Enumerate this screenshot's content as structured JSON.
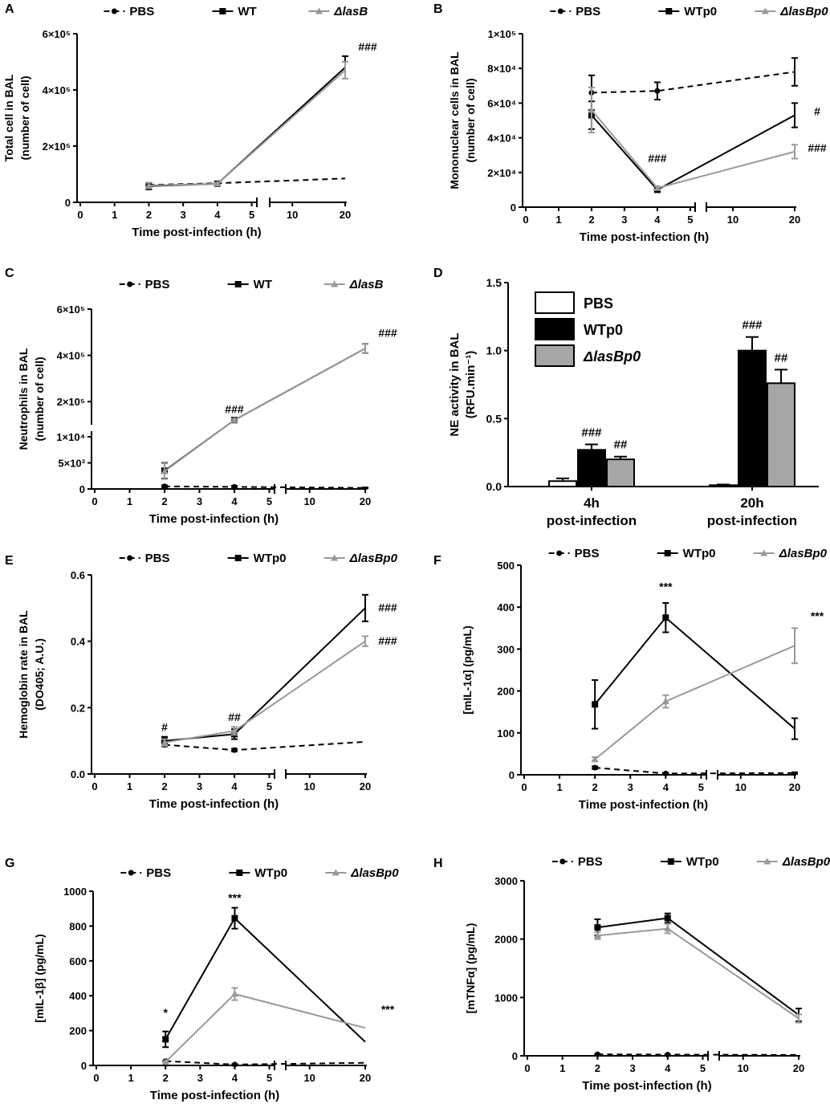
{
  "figure": "Multi-panel figure: cellular and inflammatory responses in BAL after infection",
  "series_styles": {
    "PBS": {
      "color": "#000000",
      "dash": "7,5",
      "marker": "circle"
    },
    "WT": {
      "color": "#000000",
      "dash": "",
      "marker": "square"
    },
    "dlasB": {
      "color": "#999999",
      "dash": "",
      "marker": "triangle"
    }
  },
  "chart_data": [
    {
      "panel": "A",
      "type": "line",
      "title": "",
      "ylabel_lines": [
        "Total cell in BAL",
        "(number of cell)"
      ],
      "xlabel": "Time post-infection (h)",
      "xticks": [
        "0",
        "1",
        "2",
        "3",
        "4",
        "5",
        "10",
        "20"
      ],
      "yticks": [
        0,
        200000,
        400000,
        600000
      ],
      "ytick_labels": [
        "0",
        "2×10⁵",
        "4×10⁵",
        "6×10⁵"
      ],
      "ylim": [
        0,
        600000
      ],
      "legend": [
        "PBS",
        "WT",
        "ΔlasB"
      ],
      "series": [
        {
          "name": "PBS",
          "x": [
            2,
            4,
            20
          ],
          "y": [
            62000,
            68000,
            85000
          ],
          "err": [
            8000,
            4000,
            0
          ]
        },
        {
          "name": "WT",
          "x": [
            2,
            4,
            20
          ],
          "y": [
            58000,
            66000,
            480000
          ],
          "err": [
            12000,
            4000,
            40000
          ]
        },
        {
          "name": "ΔlasB",
          "x": [
            2,
            4,
            20
          ],
          "y": [
            60000,
            66000,
            470000
          ],
          "err": [
            10000,
            4000,
            30000
          ]
        }
      ],
      "annotations": [
        {
          "text": "###",
          "x": 20,
          "y": 540000
        }
      ]
    },
    {
      "panel": "B",
      "type": "line",
      "ylabel_lines": [
        "Mononuclear cells in BAL",
        "(number of cell)"
      ],
      "xlabel": "Time post-infection (h)",
      "xticks": [
        "0",
        "1",
        "2",
        "3",
        "4",
        "5",
        "10",
        "20"
      ],
      "yticks": [
        0,
        20000,
        40000,
        60000,
        80000,
        100000
      ],
      "ytick_labels": [
        "0",
        "2×10⁴",
        "4×10⁴",
        "6×10⁴",
        "8×10⁴",
        "1×10⁵"
      ],
      "ylim": [
        0,
        100000
      ],
      "legend": [
        "PBS",
        "WTp0",
        "ΔlasBp0"
      ],
      "series": [
        {
          "name": "PBS",
          "x": [
            2,
            4,
            20
          ],
          "y": [
            66000,
            67000,
            78000
          ],
          "err": [
            10000,
            5000,
            8000
          ]
        },
        {
          "name": "WTp0",
          "x": [
            2,
            4,
            20
          ],
          "y": [
            53000,
            10000,
            53000
          ],
          "err": [
            8000,
            1000,
            7000
          ]
        },
        {
          "name": "ΔlasBp0",
          "x": [
            2,
            4,
            20
          ],
          "y": [
            56000,
            11000,
            32000
          ],
          "err": [
            13000,
            1000,
            4000
          ]
        }
      ],
      "annotations": [
        {
          "text": "###",
          "x": 4,
          "y": 26000
        },
        {
          "text": "#",
          "x": 20,
          "y": 53000
        },
        {
          "text": "###",
          "x": 20,
          "y": 32000
        }
      ]
    },
    {
      "panel": "C",
      "type": "line",
      "ylabel_lines": [
        "Neutrophils in BAL",
        "(number of cell)"
      ],
      "xlabel": "Time post-infection (h)",
      "xticks": [
        "0",
        "1",
        "2",
        "3",
        "4",
        "5",
        "10",
        "20"
      ],
      "ytick_labels": [
        "0",
        "5×10³",
        "1×10⁴",
        "2×10⁵",
        "4×10⁵",
        "6×10⁵"
      ],
      "ylim": [
        0,
        600000
      ],
      "legend": [
        "PBS",
        "WT",
        "ΔlasB"
      ],
      "series": [
        {
          "name": "PBS",
          "x": [
            2,
            4,
            20
          ],
          "y": [
            500,
            400,
            200
          ],
          "err": [
            200,
            200,
            100
          ]
        },
        {
          "name": "WT",
          "x": [
            2,
            4,
            20
          ],
          "y": [
            3500,
            120000,
            430000
          ],
          "err": [
            1500,
            5000,
            20000
          ]
        },
        {
          "name": "ΔlasB",
          "x": [
            2,
            4,
            20
          ],
          "y": [
            3400,
            120000,
            430000
          ],
          "err": [
            1500,
            5000,
            20000
          ]
        }
      ],
      "annotations": [
        {
          "text": "###",
          "x": 4,
          "y": 150000
        },
        {
          "text": "###",
          "x": 20,
          "y": 480000
        }
      ]
    },
    {
      "panel": "D",
      "type": "bar",
      "ylabel_lines": [
        "NE activity in BAL",
        "(RFU.min⁻¹)"
      ],
      "categories": [
        "4h",
        "20h"
      ],
      "category_sublabels": [
        "post-infection",
        "post-infection"
      ],
      "yticks": [
        0.0,
        0.5,
        1.0,
        1.5
      ],
      "ytick_labels": [
        "0.0",
        "0.5",
        "1.0",
        "1.5"
      ],
      "ylim": [
        0,
        1.5
      ],
      "legend": [
        "PBS",
        "WTp0",
        "ΔlasBp0"
      ],
      "series": [
        {
          "name": "PBS",
          "values": [
            0.04,
            0.01
          ],
          "err": [
            0.02,
            0.005
          ],
          "color": "#ffffff"
        },
        {
          "name": "WTp0",
          "values": [
            0.27,
            1.0
          ],
          "err": [
            0.04,
            0.1
          ],
          "color": "#000000"
        },
        {
          "name": "ΔlasBp0",
          "values": [
            0.2,
            0.76
          ],
          "err": [
            0.02,
            0.1
          ],
          "color": "#a6a6a6"
        }
      ],
      "annotations": [
        {
          "text": "###",
          "cat": 0,
          "series": 1
        },
        {
          "text": "##",
          "cat": 0,
          "series": 2
        },
        {
          "text": "###",
          "cat": 1,
          "series": 1
        },
        {
          "text": "##",
          "cat": 1,
          "series": 2
        }
      ]
    },
    {
      "panel": "E",
      "type": "line",
      "ylabel_lines": [
        "Hemoglobin rate in BAL",
        "(DO405; A.U.)"
      ],
      "xlabel": "Time post-infection (h)",
      "xticks": [
        "0",
        "1",
        "2",
        "3",
        "4",
        "5",
        "10",
        "20"
      ],
      "yticks": [
        0.0,
        0.2,
        0.4,
        0.6
      ],
      "ytick_labels": [
        "0.0",
        "0.2",
        "0.4",
        "0.6"
      ],
      "ylim": [
        0,
        0.6
      ],
      "legend": [
        "PBS",
        "WTp0",
        "ΔlasBp0"
      ],
      "series": [
        {
          "name": "PBS",
          "x": [
            2,
            4,
            20
          ],
          "y": [
            0.088,
            0.072,
            0.097
          ],
          "err": [
            0.005,
            0.004,
            0
          ]
        },
        {
          "name": "WTp0",
          "x": [
            2,
            4,
            20
          ],
          "y": [
            0.1,
            0.12,
            0.5
          ],
          "err": [
            0.012,
            0.015,
            0.04
          ]
        },
        {
          "name": "ΔlasBp0",
          "x": [
            2,
            4,
            20
          ],
          "y": [
            0.095,
            0.13,
            0.4
          ],
          "err": [
            0.01,
            0.012,
            0.015
          ]
        }
      ],
      "annotations": [
        {
          "text": "#",
          "x": 2,
          "y": 0.13
        },
        {
          "text": "##",
          "x": 4,
          "y": 0.16
        },
        {
          "text": "###",
          "x": 20,
          "y": 0.49
        },
        {
          "text": "###",
          "x": 20,
          "y": 0.39
        }
      ]
    },
    {
      "panel": "F",
      "type": "line",
      "ylabel_lines": [
        "[mIL-1α] (pg/mL)"
      ],
      "xlabel": "Time post-infection (h)",
      "xticks": [
        "0",
        "1",
        "2",
        "3",
        "4",
        "5",
        "10",
        "20"
      ],
      "yticks": [
        0,
        100,
        200,
        300,
        400,
        500
      ],
      "ytick_labels": [
        "0",
        "100",
        "200",
        "300",
        "400",
        "500"
      ],
      "ylim": [
        0,
        500
      ],
      "legend": [
        "PBS",
        "WTp0",
        "ΔlasBp0"
      ],
      "series": [
        {
          "name": "PBS",
          "x": [
            2,
            4,
            20
          ],
          "y": [
            17,
            3,
            4
          ],
          "err": [
            3,
            2,
            2
          ]
        },
        {
          "name": "WTp0",
          "x": [
            2,
            4,
            20
          ],
          "y": [
            168,
            375,
            110
          ],
          "err": [
            58,
            35,
            25
          ]
        },
        {
          "name": "ΔlasBp0",
          "x": [
            2,
            4,
            20
          ],
          "y": [
            37,
            175,
            308
          ],
          "err": [
            5,
            15,
            42
          ]
        }
      ],
      "annotations": [
        {
          "text": "***",
          "x": 4,
          "y": 440
        },
        {
          "text": "***",
          "x": 20,
          "y": 370
        }
      ]
    },
    {
      "panel": "G",
      "type": "line",
      "ylabel_lines": [
        "[mIL-1β] (pg/mL)"
      ],
      "xlabel": "Time post-infection (h)",
      "xticks": [
        "0",
        "1",
        "2",
        "3",
        "4",
        "5",
        "10",
        "20"
      ],
      "yticks": [
        0,
        200,
        400,
        600,
        800,
        1000
      ],
      "ytick_labels": [
        "0",
        "200",
        "400",
        "600",
        "800",
        "1000"
      ],
      "ylim": [
        0,
        1000
      ],
      "legend": [
        "PBS",
        "WTp0",
        "ΔlasBp0"
      ],
      "series": [
        {
          "name": "PBS",
          "x": [
            2,
            4,
            20
          ],
          "y": [
            25,
            5,
            15
          ],
          "err": [
            3,
            2,
            0
          ]
        },
        {
          "name": "WTp0",
          "x": [
            2,
            4,
            20
          ],
          "y": [
            150,
            845,
            135
          ],
          "err": [
            45,
            60,
            0
          ]
        },
        {
          "name": "ΔlasBp0",
          "x": [
            2,
            4,
            20
          ],
          "y": [
            20,
            410,
            215
          ],
          "err": [
            5,
            35,
            0
          ]
        }
      ],
      "annotations": [
        {
          "text": "*",
          "x": 2,
          "y": 280
        },
        {
          "text": "***",
          "x": 4,
          "y": 940
        },
        {
          "text": "***",
          "x": 20,
          "y": 300
        }
      ]
    },
    {
      "panel": "H",
      "type": "line",
      "ylabel_lines": [
        "[mTNFα] (pg/mL)"
      ],
      "xlabel": "Time post-infection (h)",
      "xticks": [
        "0",
        "1",
        "2",
        "3",
        "4",
        "5",
        "10",
        "20"
      ],
      "yticks": [
        0,
        1000,
        2000,
        3000
      ],
      "ytick_labels": [
        "0",
        "1000",
        "2000",
        "3000"
      ],
      "ylim": [
        0,
        3000
      ],
      "legend": [
        "PBS",
        "WTp0",
        "ΔlasBp0"
      ],
      "series": [
        {
          "name": "PBS",
          "x": [
            2,
            4,
            20
          ],
          "y": [
            25,
            20,
            15
          ],
          "err": [
            5,
            5,
            0
          ]
        },
        {
          "name": "WTp0",
          "x": [
            2,
            4,
            20
          ],
          "y": [
            2200,
            2360,
            700
          ],
          "err": [
            140,
            80,
            110
          ]
        },
        {
          "name": "ΔlasBp0",
          "x": [
            2,
            4,
            20
          ],
          "y": [
            2060,
            2180,
            640
          ],
          "err": [
            60,
            80,
            70
          ]
        }
      ],
      "annotations": []
    }
  ]
}
